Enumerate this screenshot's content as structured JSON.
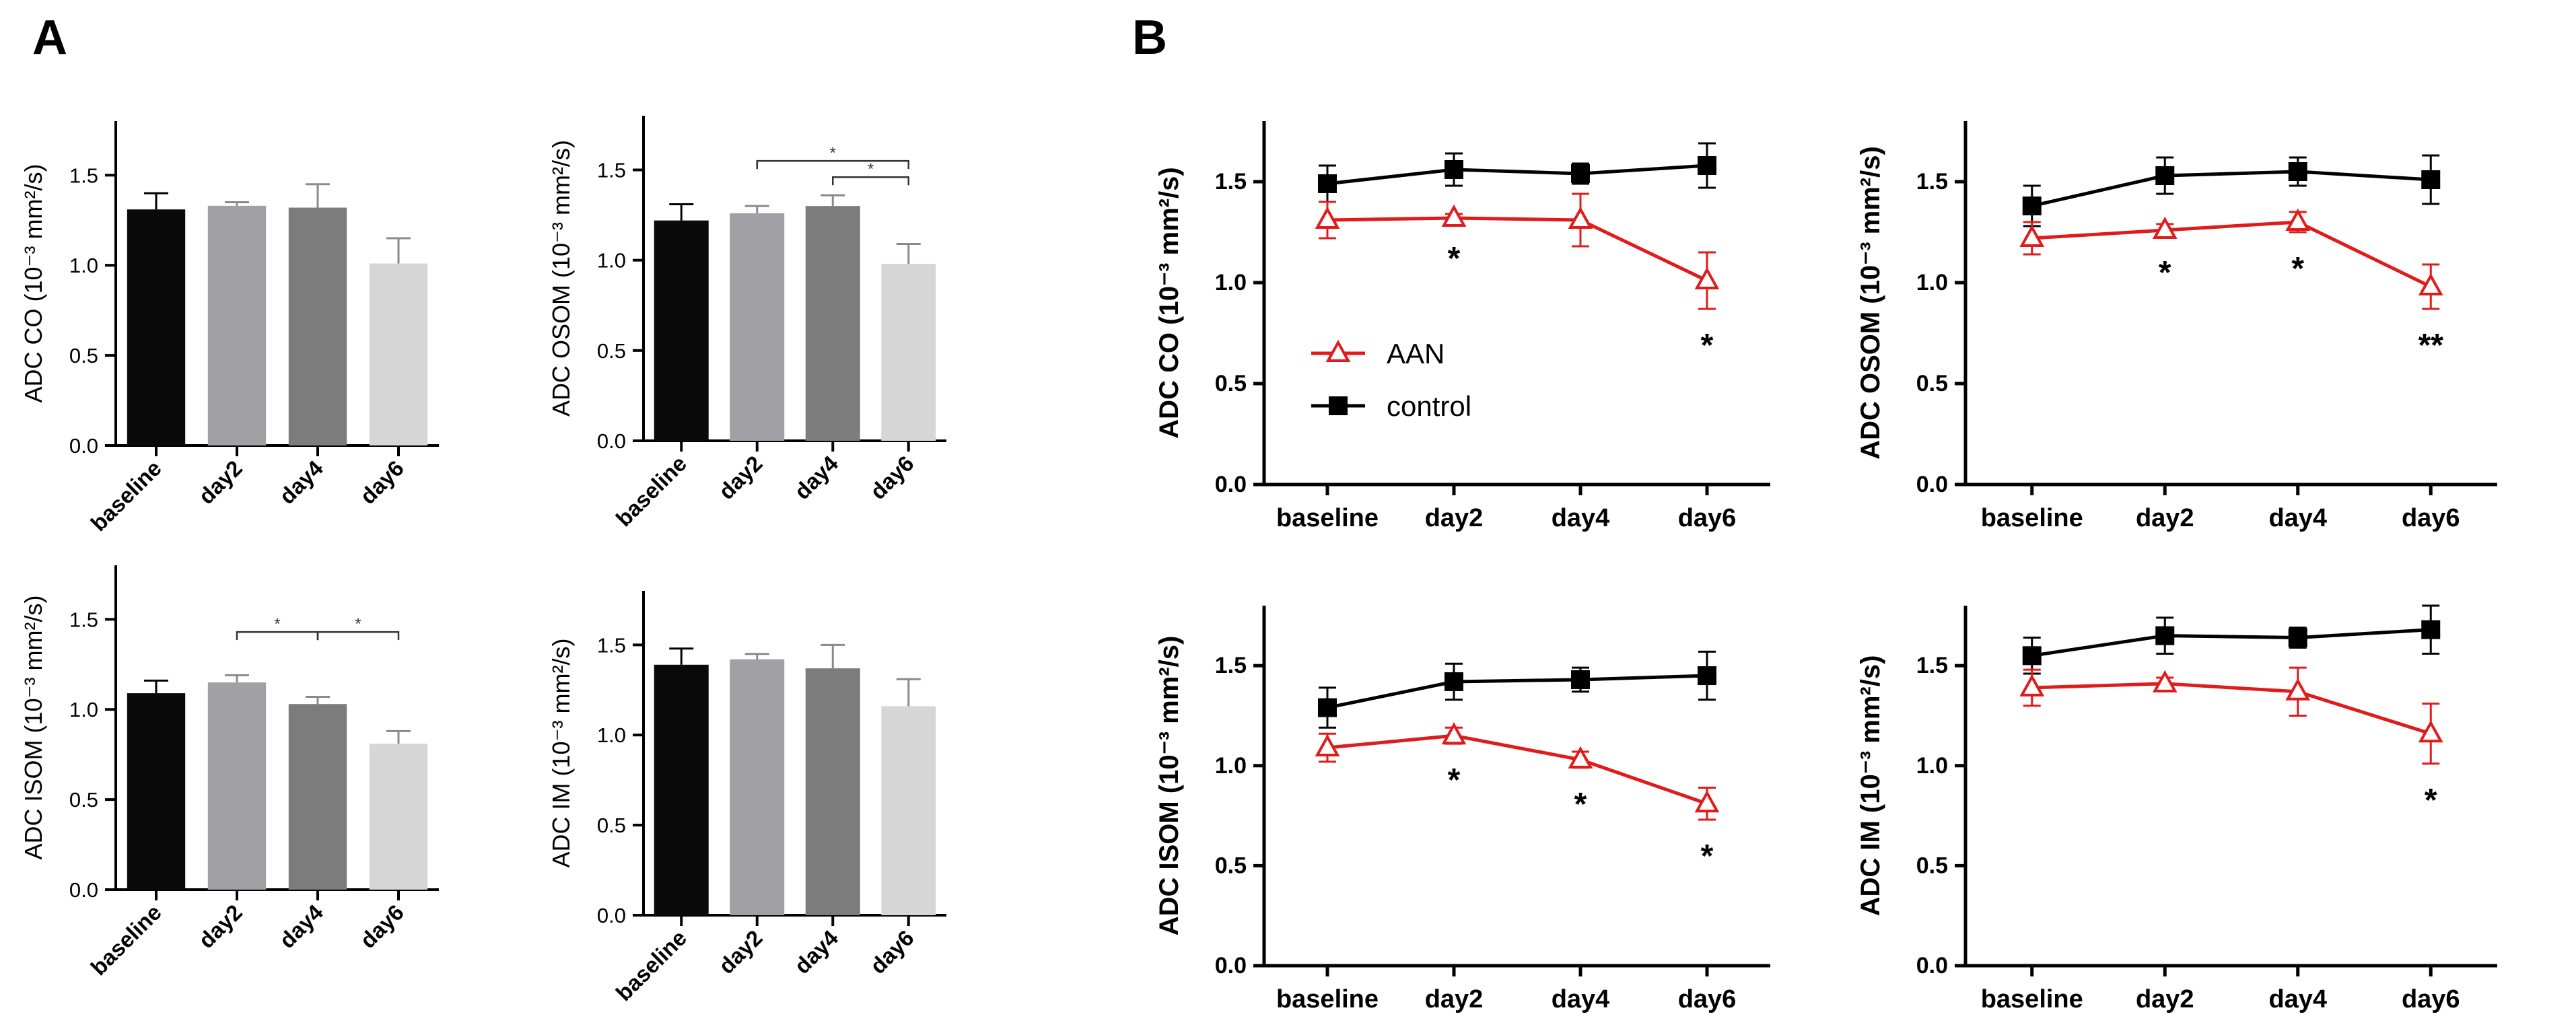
{
  "panels": {
    "a": "A",
    "b": "B"
  },
  "legend": {
    "series": [
      {
        "name": "AAN",
        "color": "#e01b1b",
        "marker": "open-triangle"
      },
      {
        "name": "control",
        "color": "#000000",
        "marker": "filled-square"
      }
    ]
  },
  "chart_data": [
    {
      "id": "a1",
      "type": "bar",
      "panel": "A",
      "title": "",
      "ylabel": "ADC CO (10⁻³ mm²/s)",
      "categories": [
        "baseline",
        "day2",
        "day4",
        "day6"
      ],
      "values": [
        1.31,
        1.33,
        1.32,
        1.01
      ],
      "errors": [
        0.09,
        0.02,
        0.13,
        0.14
      ],
      "bar_colors": [
        "#0a0a0a",
        "#a0a0a5",
        "#7c7c7c",
        "#d6d6d6"
      ],
      "ylim": [
        0,
        1.8
      ],
      "yticks": [
        "0.0",
        "0.5",
        "1.0",
        "1.5"
      ],
      "significance": []
    },
    {
      "id": "a2",
      "type": "bar",
      "panel": "A",
      "title": "",
      "ylabel": "ADC OSOM (10⁻³ mm²/s)",
      "categories": [
        "baseline",
        "day2",
        "day4",
        "day6"
      ],
      "values": [
        1.22,
        1.26,
        1.3,
        0.98
      ],
      "errors": [
        0.09,
        0.04,
        0.06,
        0.11
      ],
      "bar_colors": [
        "#0a0a0a",
        "#a0a0a5",
        "#7c7c7c",
        "#d6d6d6"
      ],
      "ylim": [
        0,
        1.8
      ],
      "yticks": [
        "0.0",
        "0.5",
        "1.0",
        "1.5"
      ],
      "significance": [
        {
          "from": 1,
          "to": 3,
          "label": "*",
          "level": 1.55
        },
        {
          "from": 2,
          "to": 3,
          "label": "*",
          "level": 1.46
        }
      ]
    },
    {
      "id": "a3",
      "type": "bar",
      "panel": "A",
      "title": "",
      "ylabel": "ADC ISOM (10⁻³ mm²/s)",
      "categories": [
        "baseline",
        "day2",
        "day4",
        "day6"
      ],
      "values": [
        1.09,
        1.15,
        1.03,
        0.81
      ],
      "errors": [
        0.07,
        0.04,
        0.04,
        0.07
      ],
      "bar_colors": [
        "#0a0a0a",
        "#a0a0a5",
        "#7c7c7c",
        "#d6d6d6"
      ],
      "ylim": [
        0,
        1.8
      ],
      "yticks": [
        "0.0",
        "0.5",
        "1.0",
        "1.5"
      ],
      "significance": [
        {
          "from": 1,
          "to": 2,
          "label": "*",
          "level": 1.43
        },
        {
          "from": 2,
          "to": 3,
          "label": "*",
          "level": 1.43
        }
      ]
    },
    {
      "id": "a4",
      "type": "bar",
      "panel": "A",
      "title": "",
      "ylabel": "ADC IM (10⁻³ mm²/s)",
      "categories": [
        "baseline",
        "day2",
        "day4",
        "day6"
      ],
      "values": [
        1.39,
        1.42,
        1.37,
        1.16
      ],
      "errors": [
        0.09,
        0.03,
        0.13,
        0.15
      ],
      "bar_colors": [
        "#0a0a0a",
        "#a0a0a5",
        "#7c7c7c",
        "#d6d6d6"
      ],
      "ylim": [
        0,
        1.8
      ],
      "yticks": [
        "0.0",
        "0.5",
        "1.0",
        "1.5"
      ],
      "significance": []
    },
    {
      "id": "b1",
      "type": "line",
      "panel": "B",
      "title": "",
      "ylabel": "ADC CO (10⁻³ mm²/s)",
      "categories": [
        "baseline",
        "day2",
        "day4",
        "day6"
      ],
      "ylim": [
        0,
        1.8
      ],
      "yticks": [
        "0.0",
        "0.5",
        "1.0",
        "1.5"
      ],
      "series": [
        {
          "name": "AAN",
          "values": [
            1.31,
            1.32,
            1.31,
            1.01
          ],
          "errors": [
            0.09,
            0.02,
            0.13,
            0.14
          ]
        },
        {
          "name": "control",
          "values": [
            1.49,
            1.56,
            1.54,
            1.58
          ],
          "errors": [
            0.09,
            0.08,
            0.05,
            0.11
          ]
        }
      ],
      "stars": [
        "",
        "*",
        "",
        "*"
      ],
      "show_legend": true
    },
    {
      "id": "b2",
      "type": "line",
      "panel": "B",
      "title": "",
      "ylabel": "ADC OSOM (10⁻³ mm²/s)",
      "categories": [
        "baseline",
        "day2",
        "day4",
        "day6"
      ],
      "ylim": [
        0,
        1.8
      ],
      "yticks": [
        "0.0",
        "0.5",
        "1.0",
        "1.5"
      ],
      "series": [
        {
          "name": "AAN",
          "values": [
            1.22,
            1.26,
            1.3,
            0.98
          ],
          "errors": [
            0.08,
            0.03,
            0.05,
            0.11
          ]
        },
        {
          "name": "control",
          "values": [
            1.38,
            1.53,
            1.55,
            1.51
          ],
          "errors": [
            0.1,
            0.09,
            0.07,
            0.12
          ]
        }
      ],
      "stars": [
        "",
        "*",
        "*",
        "**"
      ],
      "show_legend": false
    },
    {
      "id": "b3",
      "type": "line",
      "panel": "B",
      "title": "",
      "ylabel": "ADC ISOM (10⁻³ mm²/s)",
      "categories": [
        "baseline",
        "day2",
        "day4",
        "day6"
      ],
      "ylim": [
        0,
        1.8
      ],
      "yticks": [
        "0.0",
        "0.5",
        "1.0",
        "1.5"
      ],
      "series": [
        {
          "name": "AAN",
          "values": [
            1.09,
            1.15,
            1.03,
            0.81
          ],
          "errors": [
            0.07,
            0.04,
            0.04,
            0.08
          ]
        },
        {
          "name": "control",
          "values": [
            1.29,
            1.42,
            1.43,
            1.45
          ],
          "errors": [
            0.1,
            0.09,
            0.06,
            0.12
          ]
        }
      ],
      "stars": [
        "",
        "*",
        "*",
        "*"
      ],
      "show_legend": false
    },
    {
      "id": "b4",
      "type": "line",
      "panel": "B",
      "title": "",
      "ylabel": "ADC IM (10⁻³ mm²/s)",
      "categories": [
        "baseline",
        "day2",
        "day4",
        "day6"
      ],
      "ylim": [
        0,
        1.8
      ],
      "yticks": [
        "0.0",
        "0.5",
        "1.0",
        "1.5"
      ],
      "series": [
        {
          "name": "AAN",
          "values": [
            1.39,
            1.41,
            1.37,
            1.16
          ],
          "errors": [
            0.09,
            0.03,
            0.12,
            0.15
          ]
        },
        {
          "name": "control",
          "values": [
            1.55,
            1.65,
            1.64,
            1.68
          ],
          "errors": [
            0.09,
            0.09,
            0.05,
            0.12
          ]
        }
      ],
      "stars": [
        "",
        "",
        "",
        "*"
      ],
      "show_legend": false
    }
  ]
}
